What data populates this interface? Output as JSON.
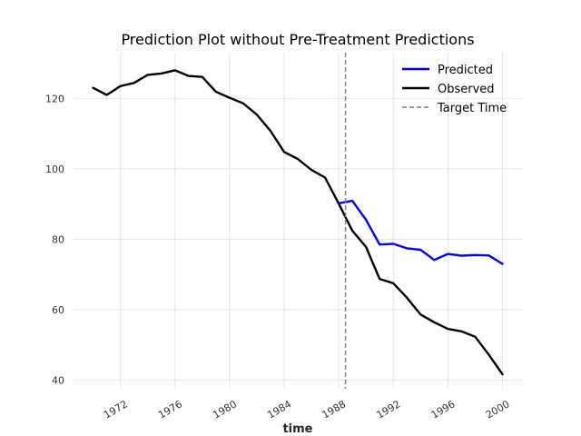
{
  "chart_data": {
    "type": "line",
    "title": "Prediction Plot without Pre-Treatment Predictions",
    "xlabel": "time",
    "ylabel": "",
    "xlim": [
      1968.5,
      2001.5
    ],
    "ylim": [
      37.5,
      133
    ],
    "x_ticks": [
      1972,
      1976,
      1980,
      1984,
      1988,
      1992,
      1996,
      2000
    ],
    "y_ticks": [
      40,
      60,
      80,
      100,
      120
    ],
    "grid": true,
    "legend_position": "top-right",
    "target_time": 1988.5,
    "series": [
      {
        "name": "Predicted",
        "color": "#0000ff",
        "x": [
          1988,
          1989,
          1990,
          1991,
          1992,
          1993,
          1994,
          1995,
          1996,
          1997,
          1998,
          1999,
          2000
        ],
        "y": [
          90.2,
          90.9,
          85.5,
          78.5,
          78.7,
          77.4,
          77.0,
          74.1,
          75.8,
          75.3,
          75.5,
          75.4,
          73.0
        ]
      },
      {
        "name": "Observed",
        "color": "#000000",
        "x": [
          1970,
          1971,
          1972,
          1973,
          1974,
          1975,
          1976,
          1977,
          1978,
          1979,
          1980,
          1981,
          1982,
          1983,
          1984,
          1985,
          1986,
          1987,
          1988,
          1989,
          1990,
          1991,
          1992,
          1993,
          1994,
          1995,
          1996,
          1997,
          1998,
          1999,
          2000
        ],
        "y": [
          123.0,
          121.0,
          123.5,
          124.4,
          126.7,
          127.1,
          128.0,
          126.4,
          126.1,
          121.9,
          120.2,
          118.6,
          115.4,
          110.8,
          104.8,
          102.8,
          99.7,
          97.5,
          90.1,
          82.4,
          77.8,
          68.7,
          67.5,
          63.4,
          58.6,
          56.4,
          54.5,
          53.8,
          52.3,
          47.2,
          41.6
        ]
      }
    ],
    "target_series": {
      "name": "Target Time",
      "color": "#808080"
    }
  }
}
